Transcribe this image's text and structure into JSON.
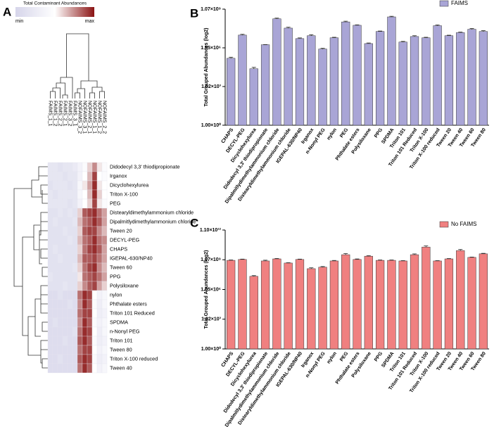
{
  "chart_data": [
    {
      "type": "heatmap",
      "panel": "A",
      "legend_title": "Total Contaminant Abundances",
      "scale_labels": [
        "min",
        "max"
      ],
      "colors": [
        "#d6d5ea",
        "#ffffff",
        "#8b1414"
      ],
      "clim": [
        0,
        1
      ],
      "columns": [
        "FAIMS_1_1",
        "FAIMS_1_2",
        "FAIMS_2_2",
        "FAIMS_2_1",
        "FAIMS_3_2",
        "FAIMS_3_1",
        "NOFAIMS_3_2",
        "NOFAIMS_3_1",
        "NOFAIMS_2_1",
        "NOFAIMS_1_1",
        "NOFAIMS_1_2",
        "NOFAIMS_2_2"
      ],
      "rows": [
        "Didodecyl 3,3' thiodipropionate",
        "Irganox",
        "Dicyclohexylurea",
        "Triton X-100",
        "PEG",
        "Distearyldimethylammonium chloride",
        "Dipalmitlydimethylammonium chloride",
        "Tween 20",
        "DECYL-PEG",
        "CHAPS",
        "IGEPAL-630/NP40",
        "Tween 60",
        "PPG",
        "Polysiloxane",
        "nylon",
        "Phthalate esters",
        "Triton 101 Reduced",
        "SPDMA",
        "n-Nonyl PEG",
        "Triton 101",
        "Tween 80",
        "Triton X-100 reduced",
        "Tween 40"
      ],
      "values": [
        [
          0.2,
          0.2,
          0.15,
          0.2,
          0.2,
          0.25,
          0.35,
          0.45,
          0.6,
          0.75,
          0.55,
          0.45
        ],
        [
          0.2,
          0.2,
          0.2,
          0.15,
          0.2,
          0.2,
          0.35,
          0.5,
          0.65,
          0.9,
          0.5,
          0.45
        ],
        [
          0.15,
          0.2,
          0.2,
          0.2,
          0.15,
          0.2,
          0.4,
          0.55,
          0.7,
          0.95,
          0.55,
          0.5
        ],
        [
          0.2,
          0.15,
          0.2,
          0.2,
          0.2,
          0.2,
          0.4,
          0.5,
          0.65,
          0.95,
          0.6,
          0.5
        ],
        [
          0.2,
          0.2,
          0.2,
          0.2,
          0.15,
          0.2,
          0.35,
          0.5,
          0.6,
          0.9,
          0.55,
          0.45
        ],
        [
          0.15,
          0.15,
          0.2,
          0.15,
          0.2,
          0.15,
          0.6,
          0.85,
          0.9,
          0.95,
          0.8,
          0.7
        ],
        [
          0.15,
          0.2,
          0.15,
          0.15,
          0.15,
          0.2,
          0.65,
          0.8,
          0.85,
          0.95,
          0.85,
          0.7
        ],
        [
          0.15,
          0.15,
          0.15,
          0.2,
          0.15,
          0.15,
          0.6,
          0.85,
          0.9,
          0.9,
          0.75,
          0.65
        ],
        [
          0.15,
          0.15,
          0.15,
          0.15,
          0.2,
          0.15,
          0.65,
          0.8,
          0.85,
          0.95,
          0.8,
          0.75
        ],
        [
          0.15,
          0.2,
          0.15,
          0.15,
          0.15,
          0.15,
          0.6,
          0.8,
          0.9,
          0.95,
          0.85,
          0.7
        ],
        [
          0.15,
          0.15,
          0.2,
          0.15,
          0.15,
          0.15,
          0.65,
          0.85,
          0.85,
          0.9,
          0.8,
          0.7
        ],
        [
          0.15,
          0.15,
          0.15,
          0.15,
          0.15,
          0.2,
          0.6,
          0.8,
          0.9,
          0.95,
          0.75,
          0.65
        ],
        [
          0.2,
          0.15,
          0.15,
          0.15,
          0.15,
          0.15,
          0.55,
          0.8,
          0.85,
          0.9,
          0.8,
          0.7
        ],
        [
          0.15,
          0.15,
          0.15,
          0.2,
          0.15,
          0.15,
          0.6,
          0.75,
          0.85,
          0.9,
          0.7,
          0.6
        ],
        [
          0.1,
          0.1,
          0.15,
          0.1,
          0.1,
          0.1,
          0.8,
          0.95,
          0.9,
          0.5,
          0.35,
          0.4
        ],
        [
          0.1,
          0.1,
          0.1,
          0.1,
          0.15,
          0.1,
          0.75,
          0.95,
          0.85,
          0.45,
          0.3,
          0.4
        ],
        [
          0.1,
          0.1,
          0.1,
          0.1,
          0.1,
          0.1,
          0.8,
          0.9,
          0.9,
          0.5,
          0.3,
          0.35
        ],
        [
          0.1,
          0.15,
          0.1,
          0.1,
          0.1,
          0.1,
          0.75,
          0.95,
          0.85,
          0.45,
          0.35,
          0.4
        ],
        [
          0.1,
          0.1,
          0.1,
          0.1,
          0.1,
          0.15,
          0.8,
          0.95,
          0.9,
          0.5,
          0.3,
          0.4
        ],
        [
          0.1,
          0.1,
          0.1,
          0.15,
          0.1,
          0.1,
          0.85,
          0.95,
          0.85,
          0.45,
          0.3,
          0.35
        ],
        [
          0.1,
          0.1,
          0.1,
          0.1,
          0.1,
          0.1,
          0.8,
          0.9,
          0.9,
          0.5,
          0.35,
          0.4
        ],
        [
          0.1,
          0.1,
          0.15,
          0.1,
          0.1,
          0.1,
          0.85,
          0.95,
          0.9,
          0.45,
          0.3,
          0.35
        ],
        [
          0.1,
          0.1,
          0.1,
          0.1,
          0.1,
          0.1,
          0.8,
          0.95,
          0.85,
          0.5,
          0.35,
          0.4
        ]
      ]
    },
    {
      "type": "bar",
      "panel": "B",
      "ylabel": "Total Grouped Abundances (log2)",
      "yscale": "log",
      "legend": "upper right",
      "categories": [
        "CHAPS",
        "DECYL-PEG",
        "Dicyclohexylurea",
        "Didodecyl 3,3' thiodipropionate",
        "Dipalmitlydimethylammonium chloride",
        "Distearyldimethylammonium chloride",
        "IGEPAL-630/NP40",
        "Irganox",
        "n-Nonyl PEG",
        "nylon",
        "PEG",
        "Phthalate esters",
        "Polysiloxane",
        "PPG",
        "SPDMA",
        "Triton 101",
        "Triton 101 Reduced",
        "Triton X-100",
        "Triton X-100 reduced",
        "Tween 20",
        "Tween 40",
        "Tween 60",
        "Tween 80"
      ],
      "series": [
        {
          "name": "FAIMS",
          "color": "#a9a5d6",
          "values": [
            161000,
            10300000,
            24800,
            1830000,
            190000000,
            36000000,
            5500000,
            9200000,
            850000,
            6360000,
            109000000,
            59600000,
            2250000,
            19700000,
            268000000,
            2970000,
            7990000,
            6360000,
            55600000,
            9200000,
            16000000,
            29200000,
            19700000
          ],
          "errors": [
            35000,
            1500000,
            7000,
            60000,
            25000000,
            6000000,
            700000,
            1700000,
            110000,
            600000,
            15000000,
            5000000,
            250000,
            1600000,
            30000000,
            350000,
            1200000,
            600000,
            8000000,
            900000,
            1500000,
            4000000,
            3000000
          ]
        }
      ],
      "ylim": [
        1,
        1073741824
      ],
      "yticks": [
        {
          "value": 1,
          "label": "1.00×10⁰"
        },
        {
          "value": 1024,
          "label": "1.02×10³"
        },
        {
          "value": 1048576,
          "label": "1.05×10⁶"
        },
        {
          "value": 1073741824,
          "label": "1.07×10⁹"
        }
      ]
    },
    {
      "type": "bar",
      "panel": "C",
      "ylabel": "Total Grouped Abundances (log2)",
      "yscale": "log",
      "legend": "upper right",
      "categories": [
        "CHAPS",
        "DECYL-PEG",
        "Dicyclohexylurea",
        "Didodecyl 3,3' thiodipropionate",
        "Dipalmitlydimethylammonium chloride",
        "Distearyldimethylammonium chloride",
        "IGEPAL-630/NP40",
        "Irganox",
        "n-Nonyl PEG",
        "nylon",
        "PEG",
        "Phthalate esters",
        "Polysiloxane",
        "PPG",
        "SPDMA",
        "Triton 101",
        "Triton 101 Reduced",
        "Triton X-100",
        "Triton X-100 reduced",
        "Tween 20",
        "Tween 40",
        "Tween 60",
        "Tween 80"
      ],
      "series": [
        {
          "name": "No FAIMS",
          "color": "#f08080",
          "values": [
            935000000,
            1150000000,
            22600000,
            814000000,
            1320000000,
            500000000,
            1150000000,
            134000000,
            190000000,
            814000000,
            3490000000,
            1150000000,
            2470000000,
            935000000,
            935000000,
            814000000,
            3490000000,
            20800000000,
            814000000,
            1320000000,
            9200000000,
            1870000000,
            4290000000
          ],
          "errors": [
            80000000,
            100000000,
            4000000,
            150000000,
            120000000,
            40000000,
            100000000,
            30000000,
            30000000,
            100000000,
            1000000000,
            150000000,
            300000000,
            80000000,
            80000000,
            60000000,
            700000000,
            6000000000,
            60000000,
            100000000,
            2500000000,
            150000000,
            500000000
          ]
        }
      ],
      "ylim": [
        1,
        1099511627776
      ],
      "yticks": [
        {
          "value": 1,
          "label": "1.00×10⁰"
        },
        {
          "value": 1024,
          "label": "1.02×10³"
        },
        {
          "value": 1048576,
          "label": "1.05×10⁶"
        },
        {
          "value": 1073741824,
          "label": "1.07×10⁹"
        },
        {
          "value": 1099511627776,
          "label": "1.10×10¹²"
        }
      ]
    }
  ]
}
